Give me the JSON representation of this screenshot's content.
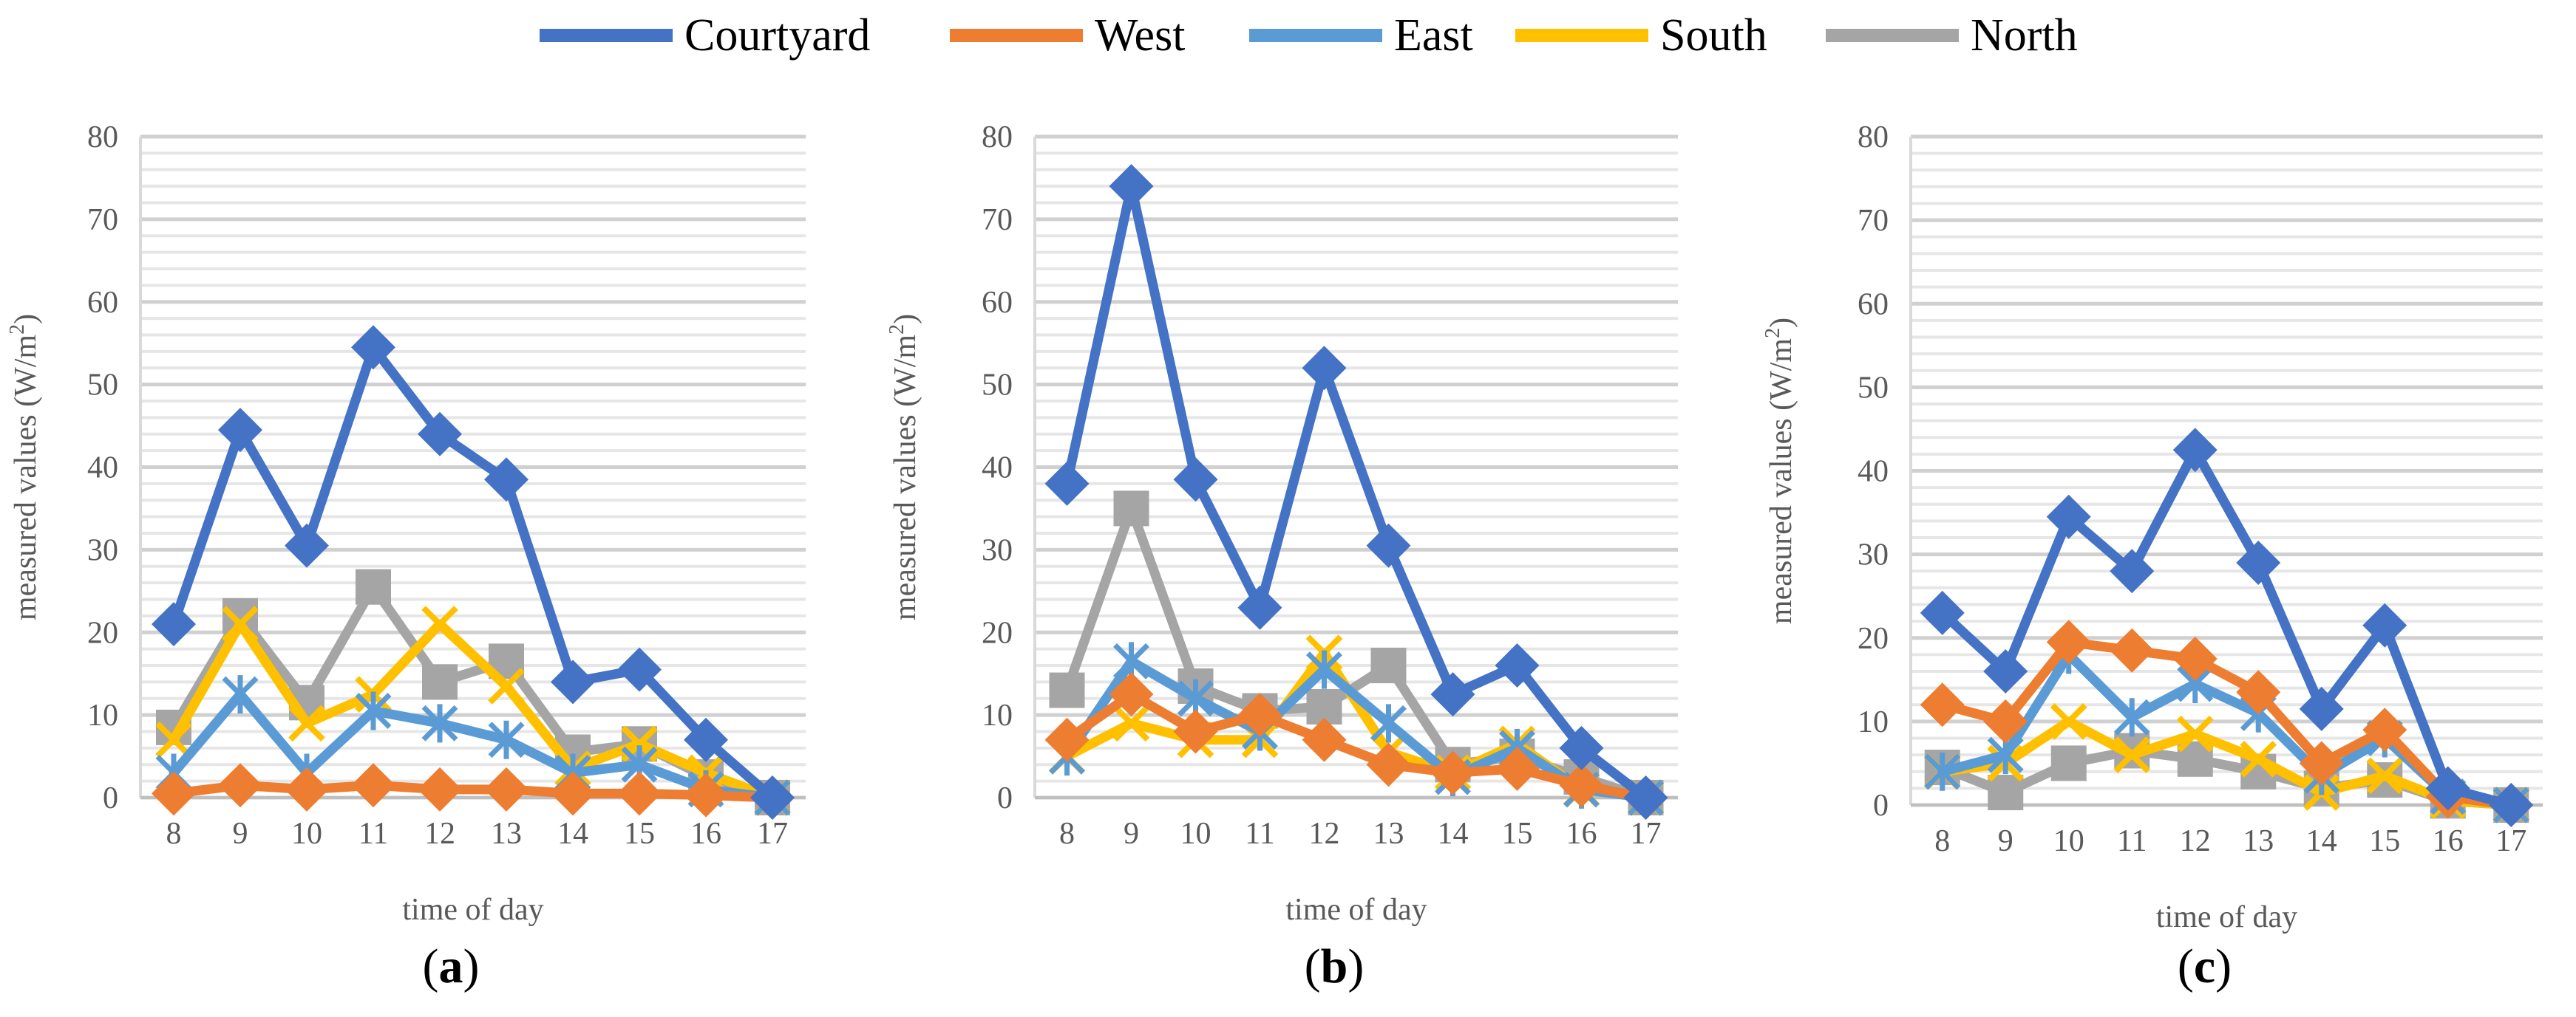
{
  "legend": [
    {
      "name": "Courtyard",
      "color": "#4472C4"
    },
    {
      "name": "West",
      "color": "#ED7D31"
    },
    {
      "name": "East",
      "color": "#5B9BD5"
    },
    {
      "name": "South",
      "color": "#FFC000"
    },
    {
      "name": "North",
      "color": "#A5A5A5"
    }
  ],
  "chart_data": [
    {
      "type": "line",
      "panel_label": "(a)",
      "panel_letter": "a",
      "xlabel": "time of day",
      "ylabel": "measured values (W/m2)",
      "ylabel_main": "measured values (W/m",
      "ylabel_sup": "2",
      "ylabel_tail": ")",
      "ylim": [
        0,
        80
      ],
      "yticks": [
        0,
        10,
        20,
        30,
        40,
        50,
        60,
        70,
        80
      ],
      "categories": [
        "8",
        "9",
        "10",
        "11",
        "12",
        "13",
        "14",
        "15",
        "16",
        "17"
      ],
      "series": [
        {
          "name": "Courtyard",
          "color": "#4472C4",
          "marker": "diamond",
          "values": [
            21,
            44.5,
            30.5,
            54.5,
            44,
            38.5,
            14,
            15.5,
            7,
            0
          ]
        },
        {
          "name": "West",
          "color": "#ED7D31",
          "marker": "diamond",
          "values": [
            0.5,
            1.5,
            1,
            1.5,
            1,
            1,
            0.5,
            0.5,
            0.3,
            0
          ]
        },
        {
          "name": "East",
          "color": "#5B9BD5",
          "marker": "star",
          "values": [
            3,
            12.5,
            3,
            10.5,
            9,
            7,
            3,
            4,
            1,
            0
          ]
        },
        {
          "name": "South",
          "color": "#FFC000",
          "marker": "x",
          "values": [
            7,
            21,
            9,
            12.5,
            21,
            13.5,
            3.5,
            6.5,
            3,
            0
          ]
        },
        {
          "name": "North",
          "color": "#A5A5A5",
          "marker": "square",
          "values": [
            8.5,
            22,
            11.5,
            25.5,
            14,
            16.5,
            5.5,
            6.5,
            2.5,
            0
          ]
        }
      ]
    },
    {
      "type": "line",
      "panel_label": "(b)",
      "panel_letter": "b",
      "xlabel": "time of day",
      "ylabel": "measured values (W/m2)",
      "ylabel_main": "measured values (W/m",
      "ylabel_sup": "2",
      "ylabel_tail": ")",
      "ylim": [
        0,
        80
      ],
      "yticks": [
        0,
        10,
        20,
        30,
        40,
        50,
        60,
        70,
        80
      ],
      "categories": [
        "8",
        "9",
        "10",
        "11",
        "12",
        "13",
        "14",
        "15",
        "16",
        "17"
      ],
      "series": [
        {
          "name": "Courtyard",
          "color": "#4472C4",
          "marker": "diamond",
          "values": [
            38,
            74,
            38.5,
            23,
            52,
            30.5,
            12.5,
            16,
            6,
            0
          ]
        },
        {
          "name": "West",
          "color": "#ED7D31",
          "marker": "diamond",
          "values": [
            7,
            12.5,
            8,
            10,
            7,
            4,
            3,
            3.5,
            1.5,
            0
          ]
        },
        {
          "name": "East",
          "color": "#5B9BD5",
          "marker": "star",
          "values": [
            5,
            16.5,
            12,
            8,
            15.5,
            9,
            2.5,
            6,
            1,
            0
          ]
        },
        {
          "name": "South",
          "color": "#FFC000",
          "marker": "x",
          "values": [
            5,
            9,
            7,
            7,
            17.5,
            5.5,
            3,
            6.5,
            1,
            0
          ]
        },
        {
          "name": "North",
          "color": "#A5A5A5",
          "marker": "square",
          "values": [
            13,
            35,
            13.5,
            10.5,
            11,
            16,
            4,
            5,
            2.5,
            0
          ]
        }
      ]
    },
    {
      "type": "line",
      "panel_label": "(c)",
      "panel_letter": "c",
      "xlabel": "time of day",
      "ylabel": "measured values (W/m2)",
      "ylabel_main": "measured values (W/m",
      "ylabel_sup": "2",
      "ylabel_tail": ")",
      "ylim": [
        0,
        80
      ],
      "yticks": [
        0,
        10,
        20,
        30,
        40,
        50,
        60,
        70,
        80
      ],
      "categories": [
        "8",
        "9",
        "10",
        "11",
        "12",
        "13",
        "14",
        "15",
        "16",
        "17"
      ],
      "series": [
        {
          "name": "Courtyard",
          "color": "#4472C4",
          "marker": "diamond",
          "values": [
            23,
            16,
            34.5,
            28,
            42.5,
            29,
            11.5,
            21.5,
            2,
            0
          ]
        },
        {
          "name": "West",
          "color": "#ED7D31",
          "marker": "diamond",
          "values": [
            12,
            10,
            19.5,
            18.5,
            17.5,
            13.5,
            5,
            9,
            1,
            0
          ]
        },
        {
          "name": "East",
          "color": "#5B9BD5",
          "marker": "star",
          "values": [
            4,
            6,
            18,
            10.5,
            14.5,
            11,
            3.5,
            8,
            1,
            0
          ]
        },
        {
          "name": "South",
          "color": "#FFC000",
          "marker": "x",
          "values": [
            4,
            5,
            10,
            6,
            8.5,
            5.5,
            1.5,
            3.5,
            0.5,
            0
          ]
        },
        {
          "name": "North",
          "color": "#A5A5A5",
          "marker": "square",
          "values": [
            4.5,
            1.5,
            5,
            6.5,
            5.5,
            4,
            2,
            3,
            0.5,
            0
          ]
        }
      ]
    }
  ]
}
